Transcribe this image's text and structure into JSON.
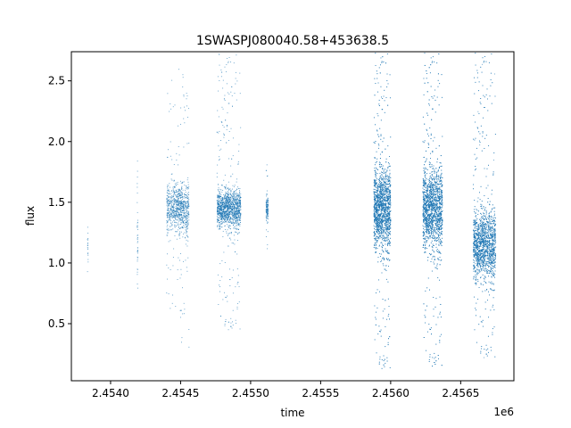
{
  "chart_data": {
    "type": "scatter",
    "title": "1SWASPJ080040.58+453638.5",
    "xlabel": "time",
    "ylabel": "flux",
    "x_offset_label": "1e6",
    "xlim": [
      2453720,
      2456880
    ],
    "ylim": [
      0.03,
      2.74
    ],
    "x_ticks": [
      {
        "value": 2454000,
        "label": "2.4540"
      },
      {
        "value": 2454500,
        "label": "2.4545"
      },
      {
        "value": 2455000,
        "label": "2.4550"
      },
      {
        "value": 2455500,
        "label": "2.4555"
      },
      {
        "value": 2456000,
        "label": "2.4560"
      },
      {
        "value": 2456500,
        "label": "2.4565"
      }
    ],
    "y_ticks": [
      {
        "value": 0.5,
        "label": "0.5"
      },
      {
        "value": 1.0,
        "label": "1.0"
      },
      {
        "value": 1.5,
        "label": "1.5"
      },
      {
        "value": 2.0,
        "label": "2.0"
      },
      {
        "value": 2.5,
        "label": "2.5"
      }
    ],
    "grid": false,
    "marker_color": "#1f77b4",
    "series": [
      {
        "clusters": [
          {
            "x_start": 2453835,
            "x_end": 2453840,
            "y_center": 1.1,
            "y_spread": 0.2,
            "y_min": 0.82,
            "y_max": 1.32,
            "n": 18
          },
          {
            "x_start": 2454190,
            "x_end": 2454195,
            "y_center": 1.2,
            "y_spread": 0.35,
            "y_min": 0.6,
            "y_max": 1.85,
            "n": 40
          },
          {
            "x_start": 2454400,
            "x_end": 2454480,
            "y_center": 1.45,
            "y_spread": 0.18,
            "y_min": 0.62,
            "y_max": 2.66,
            "n": 420
          },
          {
            "x_start": 2454480,
            "x_end": 2454560,
            "y_center": 1.45,
            "y_spread": 0.2,
            "y_min": 0.3,
            "y_max": 2.6,
            "n": 520
          },
          {
            "x_start": 2454760,
            "x_end": 2454930,
            "y_center": 1.45,
            "y_spread": 0.15,
            "y_min": 0.45,
            "y_max": 2.72,
            "n": 1600
          },
          {
            "x_start": 2455110,
            "x_end": 2455125,
            "y_center": 1.45,
            "y_spread": 0.1,
            "y_min": 1.1,
            "y_max": 1.82,
            "n": 140
          },
          {
            "x_start": 2455880,
            "x_end": 2456000,
            "y_center": 1.45,
            "y_spread": 0.32,
            "y_min": 0.13,
            "y_max": 2.73,
            "n": 3200
          },
          {
            "x_start": 2456230,
            "x_end": 2456370,
            "y_center": 1.45,
            "y_spread": 0.32,
            "y_min": 0.15,
            "y_max": 2.73,
            "n": 3400
          },
          {
            "x_start": 2456590,
            "x_end": 2456750,
            "y_center": 1.15,
            "y_spread": 0.28,
            "y_min": 0.22,
            "y_max": 2.73,
            "n": 2800
          }
        ]
      }
    ]
  }
}
